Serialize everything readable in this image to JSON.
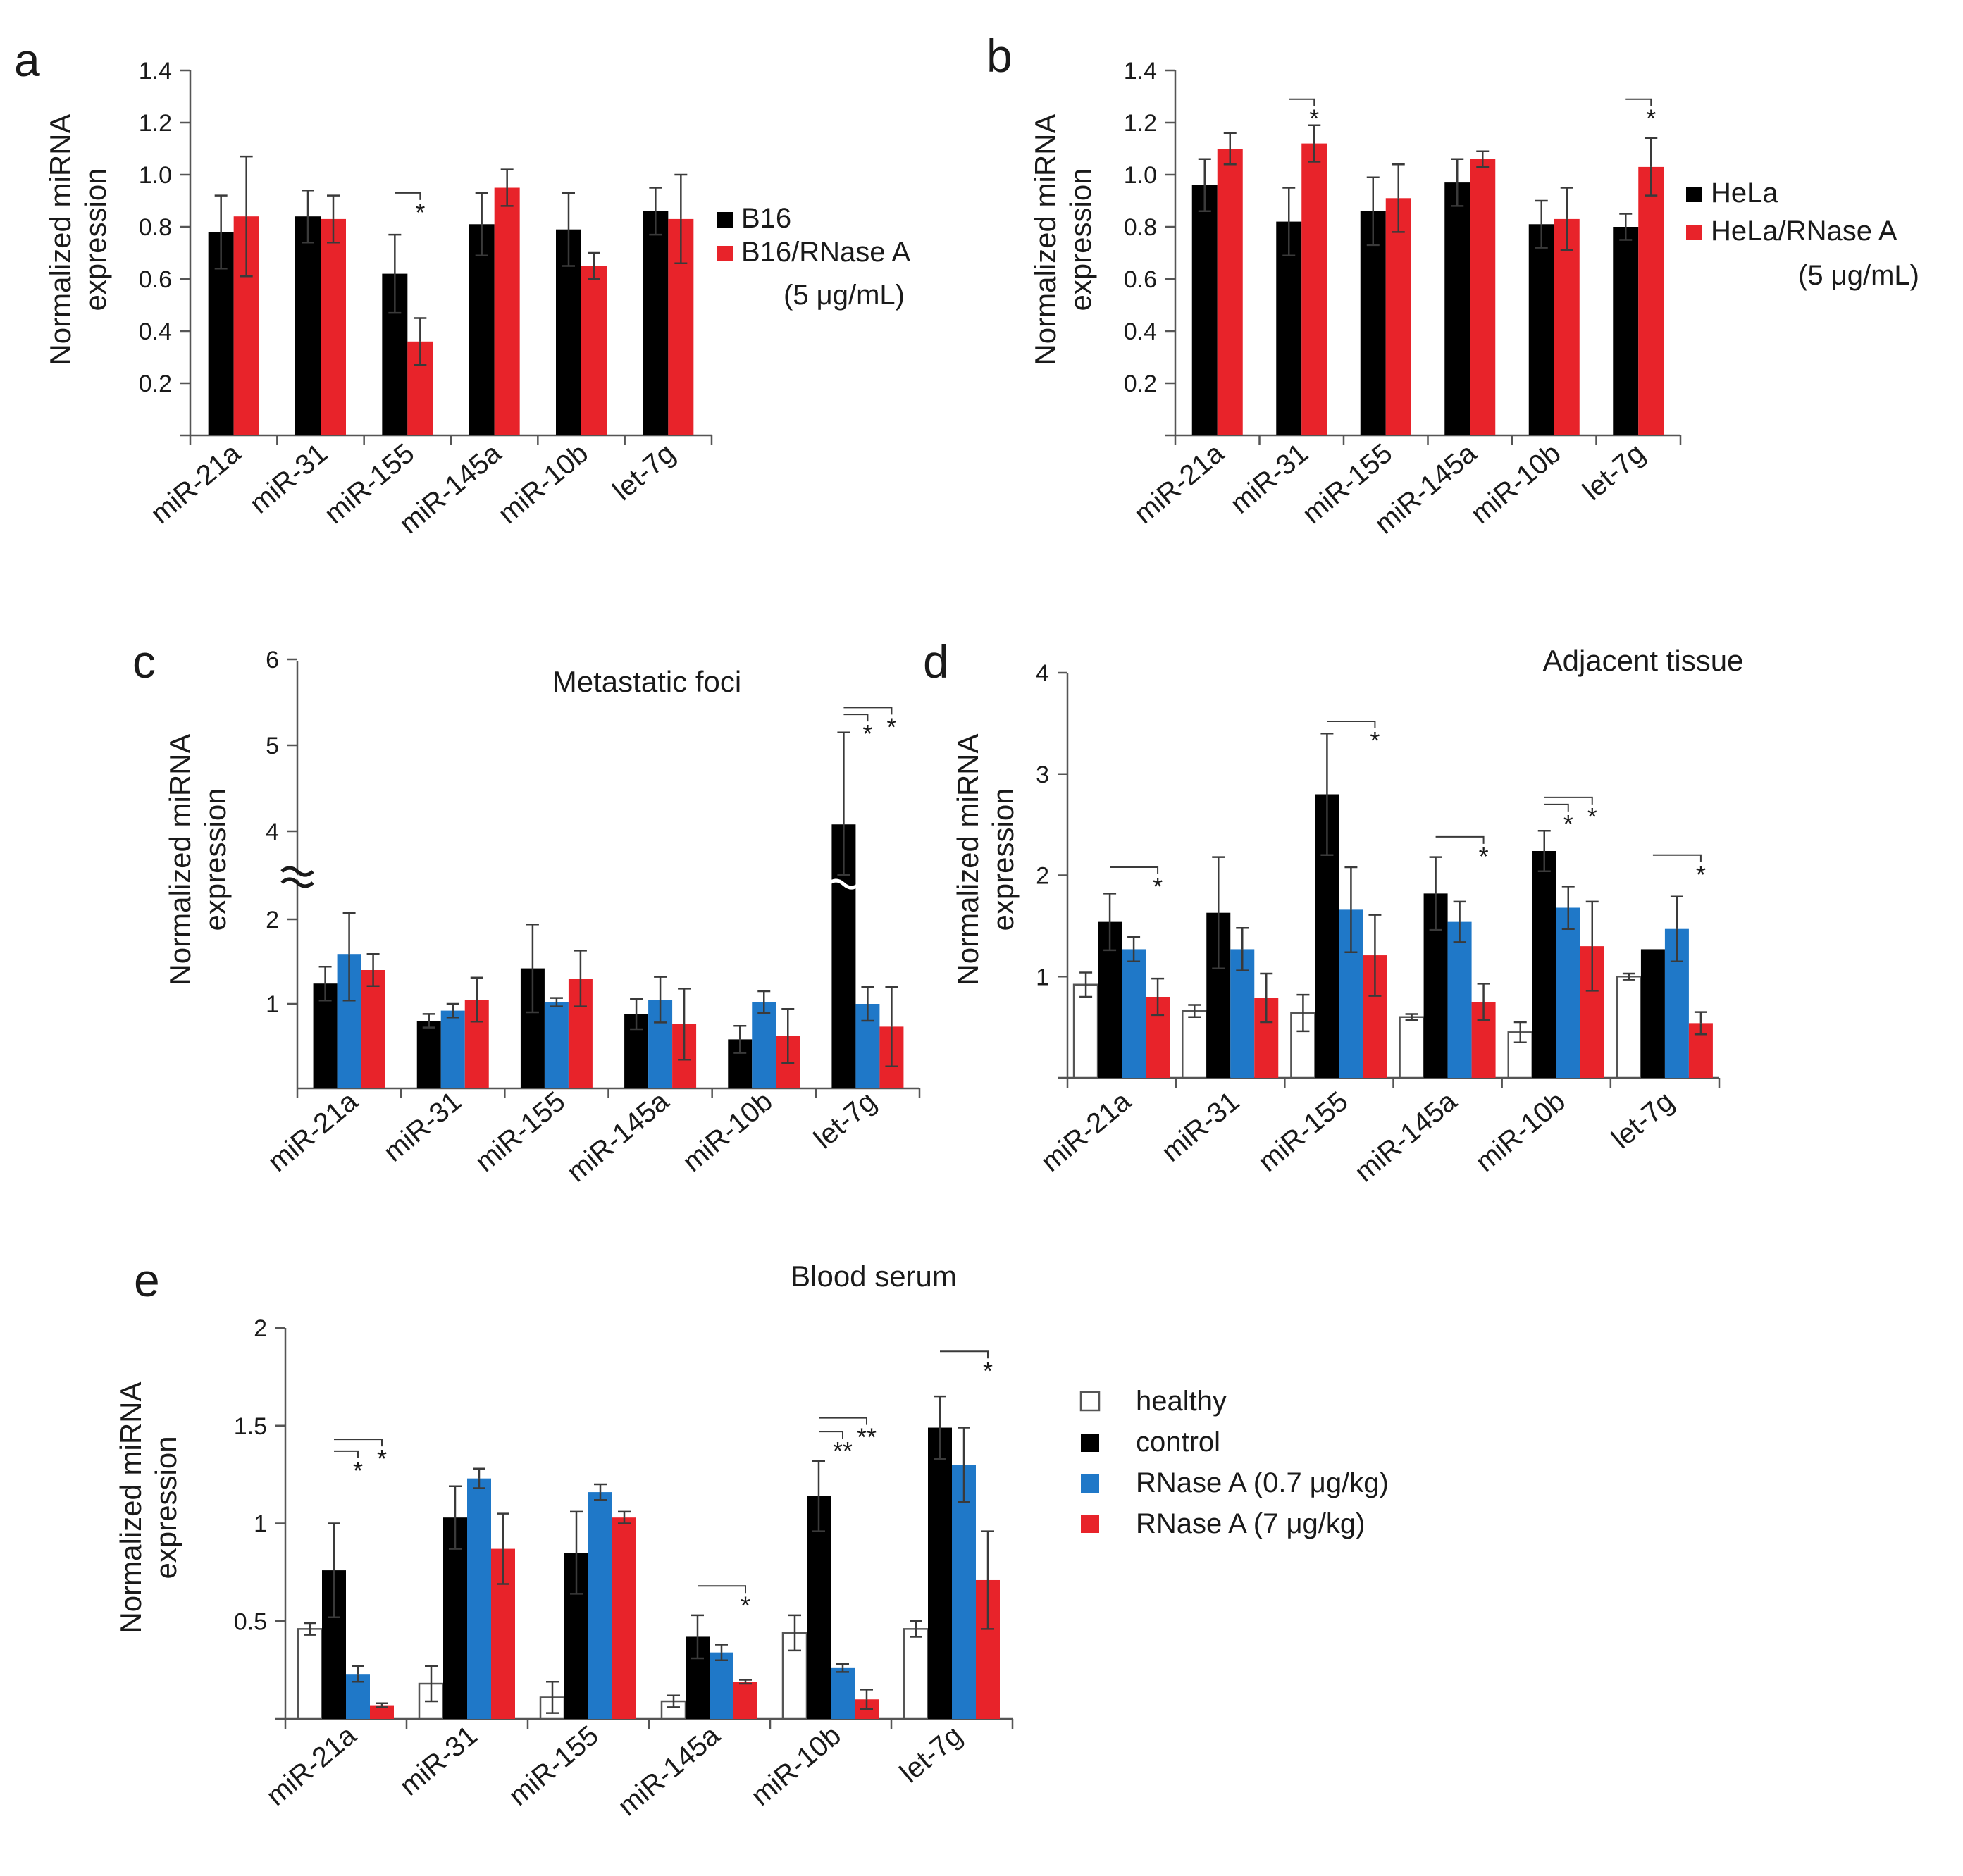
{
  "colors": {
    "healthy": "#ffffff",
    "control": "#000000",
    "low": "#1f78c8",
    "high": "#e8232a",
    "outline": "#555555"
  },
  "legends": {
    "ab": {
      "a": [
        {
          "label": "B16",
          "color": "#000000"
        },
        {
          "label": "B16/RNase A",
          "sub": "(5 μg/mL)",
          "color": "#e8232a"
        }
      ],
      "b": [
        {
          "label": "HeLa",
          "color": "#000000"
        },
        {
          "label": "HeLa/RNase A",
          "sub": "(5 μg/mL)",
          "color": "#e8232a"
        }
      ]
    },
    "e": [
      {
        "label": "healthy",
        "color": "#ffffff"
      },
      {
        "label": "control",
        "color": "#000000"
      },
      {
        "label": "RNase A (0.7 μg/kg)",
        "color": "#1f78c8"
      },
      {
        "label": "RNase A (7 μg/kg)",
        "color": "#e8232a"
      }
    ]
  },
  "chart_data": [
    {
      "panel": "a",
      "type": "bar",
      "title": "",
      "ylabel": [
        "Normalized miRNA",
        "expression"
      ],
      "xlabel": "",
      "ylim": [
        0,
        1.4
      ],
      "yticks": [
        "0.2",
        "0.4",
        "0.6",
        "0.8",
        "1.0",
        "1.2",
        "1.4"
      ],
      "ytick_values": [
        0.2,
        0.4,
        0.6,
        0.8,
        1.0,
        1.2,
        1.4
      ],
      "categories": [
        "miR-21a",
        "miR-31",
        "miR-155",
        "miR-145a",
        "miR-10b",
        "let-7g"
      ],
      "series": [
        {
          "name": "B16",
          "color": "#000000",
          "values": [
            0.78,
            0.84,
            0.62,
            0.81,
            0.79,
            0.86
          ],
          "errors": [
            0.14,
            0.1,
            0.15,
            0.12,
            0.14,
            0.09
          ]
        },
        {
          "name": "B16/RNase A (5 μg/mL)",
          "color": "#e8232a",
          "values": [
            0.84,
            0.83,
            0.36,
            0.95,
            0.65,
            0.83
          ],
          "errors": [
            0.23,
            0.09,
            0.09,
            0.07,
            0.05,
            0.17
          ]
        }
      ],
      "significance": [
        {
          "category": 2,
          "from": 0,
          "to": 1,
          "y": 0.93,
          "label": "*"
        }
      ]
    },
    {
      "panel": "b",
      "type": "bar",
      "title": "",
      "ylabel": [
        "Normalized miRNA",
        "expression"
      ],
      "xlabel": "",
      "ylim": [
        0,
        1.4
      ],
      "yticks": [
        "0.2",
        "0.4",
        "0.6",
        "0.8",
        "1.0",
        "1.2",
        "1.4"
      ],
      "ytick_values": [
        0.2,
        0.4,
        0.6,
        0.8,
        1.0,
        1.2,
        1.4
      ],
      "categories": [
        "miR-21a",
        "miR-31",
        "miR-155",
        "miR-145a",
        "miR-10b",
        "let-7g"
      ],
      "series": [
        {
          "name": "HeLa",
          "color": "#000000",
          "values": [
            0.96,
            0.82,
            0.86,
            0.97,
            0.81,
            0.8
          ],
          "errors": [
            0.1,
            0.13,
            0.13,
            0.09,
            0.09,
            0.05
          ]
        },
        {
          "name": "HeLa/RNase A (5 μg/mL)",
          "color": "#e8232a",
          "values": [
            1.1,
            1.12,
            0.91,
            1.06,
            0.83,
            1.03
          ],
          "errors": [
            0.06,
            0.07,
            0.13,
            0.03,
            0.12,
            0.11
          ]
        }
      ],
      "significance": [
        {
          "category": 1,
          "from": 0,
          "to": 1,
          "y": 1.29,
          "label": "*"
        },
        {
          "category": 5,
          "from": 0,
          "to": 1,
          "y": 1.29,
          "label": "*"
        }
      ]
    },
    {
      "panel": "c",
      "type": "bar",
      "title": "Metastatic foci",
      "ylabel": [
        "Normalized miRNA",
        "expression"
      ],
      "xlabel": "",
      "axis_break": "between 2 and 4",
      "yticks": [
        "1",
        "2",
        "4",
        "5",
        "6"
      ],
      "ytick_values": [
        1,
        2,
        4,
        5,
        6
      ],
      "categories": [
        "miR-21a",
        "miR-31",
        "miR-155",
        "miR-145a",
        "miR-10b",
        "let-7g"
      ],
      "series": [
        {
          "name": "control",
          "color": "#000000",
          "values": [
            1.24,
            0.8,
            1.42,
            0.88,
            0.58,
            4.08
          ],
          "errors": [
            0.2,
            0.08,
            0.52,
            0.18,
            0.16,
            1.07
          ]
        },
        {
          "name": "RNase A (0.7 μg/kg)",
          "color": "#1f78c8",
          "values": [
            1.59,
            0.92,
            1.02,
            1.05,
            1.02,
            1.0
          ],
          "errors": [
            0.55,
            0.08,
            0.05,
            0.27,
            0.13,
            0.2
          ]
        },
        {
          "name": "RNase A (7 μg/kg)",
          "color": "#e8232a",
          "values": [
            1.4,
            1.05,
            1.3,
            0.76,
            0.62,
            0.73
          ],
          "errors": [
            0.19,
            0.26,
            0.33,
            0.42,
            0.32,
            0.47
          ]
        }
      ],
      "significance": [
        {
          "category": 5,
          "from": 0,
          "to": 2,
          "y": 5.44,
          "label": "*"
        },
        {
          "category": 5,
          "from": 0,
          "to": 1,
          "y": 5.36,
          "label": "*"
        }
      ]
    },
    {
      "panel": "d",
      "type": "bar",
      "title": "Adjacent tissue",
      "ylabel": [
        "Normalized miRNA",
        "expression"
      ],
      "xlabel": "",
      "ylim": [
        0,
        4
      ],
      "yticks": [
        "1",
        "2",
        "3",
        "4"
      ],
      "ytick_values": [
        1,
        2,
        3,
        4
      ],
      "categories": [
        "miR-21a",
        "miR-31",
        "miR-155",
        "miR-145a",
        "miR-10b",
        "let-7g"
      ],
      "series": [
        {
          "name": "healthy",
          "color": "#ffffff",
          "values": [
            0.92,
            0.66,
            0.64,
            0.6,
            0.45,
            1.0
          ],
          "errors": [
            0.12,
            0.06,
            0.18,
            0.03,
            0.1,
            0.03
          ]
        },
        {
          "name": "control",
          "color": "#000000",
          "values": [
            1.54,
            1.63,
            2.8,
            1.82,
            2.24,
            1.27
          ],
          "errors": [
            0.28,
            0.55,
            0.6,
            0.36,
            0.2,
            0.0
          ]
        },
        {
          "name": "RNase A (0.7 μg/kg)",
          "color": "#1f78c8",
          "values": [
            1.27,
            1.27,
            1.66,
            1.54,
            1.68,
            1.47
          ],
          "errors": [
            0.12,
            0.21,
            0.42,
            0.2,
            0.21,
            0.32
          ]
        },
        {
          "name": "RNase A (7 μg/kg)",
          "color": "#e8232a",
          "values": [
            0.8,
            0.79,
            1.21,
            0.75,
            1.3,
            0.54
          ],
          "errors": [
            0.18,
            0.24,
            0.4,
            0.18,
            0.44,
            0.11
          ]
        }
      ],
      "significance": [
        {
          "category": 0,
          "from": 1,
          "to": 3,
          "y": 2.08,
          "label": "*"
        },
        {
          "category": 2,
          "from": 1,
          "to": 3,
          "y": 3.52,
          "label": "*"
        },
        {
          "category": 3,
          "from": 1,
          "to": 3,
          "y": 2.38,
          "label": "*"
        },
        {
          "category": 4,
          "from": 1,
          "to": 3,
          "y": 2.77,
          "label": "*"
        },
        {
          "category": 4,
          "from": 1,
          "to": 2,
          "y": 2.7,
          "label": "*"
        },
        {
          "category": 5,
          "from": 1,
          "to": 3,
          "y": 2.2,
          "label": "*"
        }
      ]
    },
    {
      "panel": "e",
      "type": "bar",
      "title": "Blood serum",
      "ylabel": [
        "Normalized miRNA",
        "expression"
      ],
      "xlabel": "",
      "ylim": [
        0,
        2
      ],
      "yticks": [
        "0.5",
        "1",
        "1.5",
        "2"
      ],
      "ytick_values": [
        0.5,
        1,
        1.5,
        2
      ],
      "categories": [
        "miR-21a",
        "miR-31",
        "miR-155",
        "miR-145a",
        "miR-10b",
        "let-7g"
      ],
      "series": [
        {
          "name": "healthy",
          "color": "#ffffff",
          "values": [
            0.46,
            0.18,
            0.11,
            0.09,
            0.44,
            0.46
          ],
          "errors": [
            0.03,
            0.09,
            0.08,
            0.03,
            0.09,
            0.04
          ]
        },
        {
          "name": "control",
          "color": "#000000",
          "values": [
            0.76,
            1.03,
            0.85,
            0.42,
            1.14,
            1.49
          ],
          "errors": [
            0.24,
            0.16,
            0.21,
            0.11,
            0.18,
            0.16
          ]
        },
        {
          "name": "RNase A (0.7 μg/kg)",
          "color": "#1f78c8",
          "values": [
            0.23,
            1.23,
            1.16,
            0.34,
            0.26,
            1.3
          ],
          "errors": [
            0.04,
            0.05,
            0.04,
            0.04,
            0.02,
            0.19
          ]
        },
        {
          "name": "RNase A (7 μg/kg)",
          "color": "#e8232a",
          "values": [
            0.07,
            0.87,
            1.03,
            0.19,
            0.1,
            0.71
          ],
          "errors": [
            0.01,
            0.18,
            0.03,
            0.01,
            0.05,
            0.25
          ]
        }
      ],
      "significance": [
        {
          "category": 0,
          "from": 1,
          "to": 3,
          "y": 1.43,
          "label": "*"
        },
        {
          "category": 0,
          "from": 1,
          "to": 2,
          "y": 1.37,
          "label": "*"
        },
        {
          "category": 3,
          "from": 1,
          "to": 3,
          "y": 0.68,
          "label": "*"
        },
        {
          "category": 4,
          "from": 1,
          "to": 3,
          "y": 1.54,
          "label": "**"
        },
        {
          "category": 4,
          "from": 1,
          "to": 2,
          "y": 1.47,
          "label": "**"
        },
        {
          "category": 5,
          "from": 1,
          "to": 3,
          "y": 1.88,
          "label": "*"
        }
      ]
    }
  ]
}
